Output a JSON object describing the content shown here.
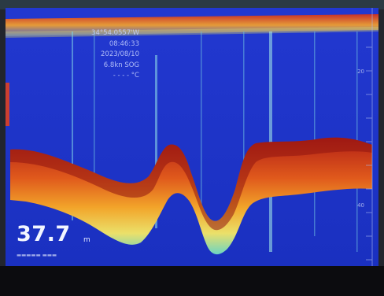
{
  "readout": {
    "longitude": "34°54.0557'W",
    "time": "08:46:33",
    "date": "2023/08/10",
    "speed": "6.8kn SOG",
    "temperature": "- - - - °C"
  },
  "depth": {
    "value": "37.7",
    "unit": "m"
  },
  "scale": {
    "labels": [
      "20",
      "40"
    ]
  },
  "colors": {
    "water": "#1c33c8",
    "echo_strong": "#c0261a",
    "echo_mid": "#f0a020",
    "echo_weak": "#e8e060",
    "echo_faint": "#5ad0c0"
  }
}
